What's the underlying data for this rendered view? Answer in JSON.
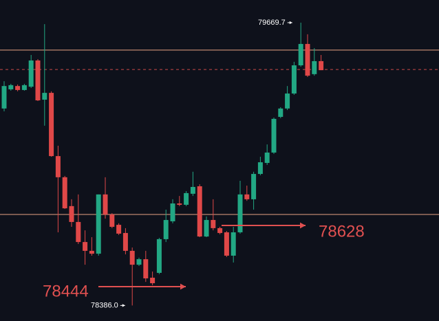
{
  "chart_data": {
    "type": "candlestick",
    "ylim": [
      78315.5,
      79772.5
    ],
    "up_color": "#22a884",
    "down_color": "#e04848",
    "series": [
      {
        "open": [
          79280,
          79367,
          79382,
          79364,
          79379,
          79498,
          79320,
          79351,
          79064,
          78968,
          78837,
          78765,
          78674,
          78634,
          78621,
          78890,
          78799,
          78752,
          78715,
          78634,
          78571,
          78596,
          78512,
          78534,
          78687,
          78768,
          78849,
          78843,
          78893,
          78927,
          78699,
          78774,
          78737,
          78718,
          78612,
          78718,
          78890,
          78868,
          78983,
          79033,
          79080,
          79242,
          79280,
          79348,
          79476,
          79573,
          79436,
          79495
        ],
        "high": [
          79404,
          79392,
          79389,
          79392,
          79523,
          79504,
          79663,
          79358,
          79111,
          78974,
          78868,
          78890,
          78727,
          78696,
          78890,
          78968,
          78805,
          78759,
          78737,
          78649,
          78603,
          78634,
          78540,
          78693,
          78821,
          78868,
          78883,
          78905,
          78993,
          78936,
          78790,
          78868,
          78743,
          78724,
          78743,
          78952,
          78930,
          78993,
          79061,
          79117,
          79239,
          79286,
          79382,
          79492,
          79669.7,
          79617,
          79554,
          79523
        ],
        "low": [
          79267,
          79361,
          79358,
          79361,
          79373,
          79314,
          79202,
          79061,
          78718,
          78824,
          78743,
          78665,
          78571,
          78612,
          78612,
          78780,
          78737,
          78706,
          78618,
          78386,
          78565,
          78493,
          78478,
          78528,
          78674,
          78759,
          78837,
          78837,
          78883,
          78696,
          78696,
          78727,
          78709,
          78606,
          78581,
          78712,
          78861,
          78821,
          78977,
          79024,
          79074,
          79236,
          79273,
          79342,
          79470,
          79423,
          79429,
          79454
        ],
        "close": [
          79382,
          79386,
          79364,
          79386,
          79498,
          79317,
          79351,
          79064,
          78968,
          78827,
          78765,
          78674,
          78634,
          78621,
          78890,
          78799,
          78743,
          78712,
          78634,
          78571,
          78596,
          78509,
          78487,
          78687,
          78774,
          78849,
          78843,
          78896,
          78924,
          78699,
          78774,
          78737,
          78715,
          78612,
          78718,
          78890,
          78868,
          78983,
          79036,
          79080,
          79233,
          79280,
          79348,
          79476,
          79573,
          79429,
          79495,
          79454
        ]
      }
    ],
    "levels": [
      {
        "value": 79545,
        "style": "solid",
        "color": "#e8a283"
      },
      {
        "value": 79457,
        "style": "dashed",
        "color": "#c84848"
      },
      {
        "value": 78799,
        "style": "solid",
        "color": "#e8a283"
      }
    ],
    "markers": [
      {
        "value": 79669.7,
        "label": "79669.7"
      },
      {
        "value": 78386,
        "label": "78386.0"
      }
    ],
    "annotations": [
      {
        "text": "78444",
        "color": "#e05050"
      },
      {
        "text": "78628",
        "color": "#e05050"
      }
    ]
  }
}
